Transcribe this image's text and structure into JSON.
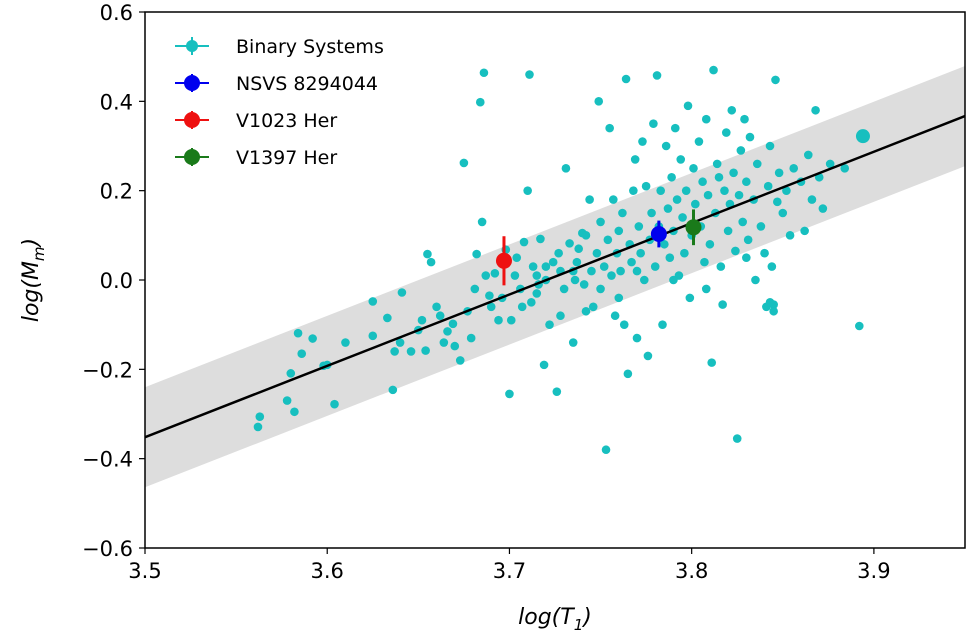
{
  "chart_data": {
    "type": "scatter",
    "xlabel": "log(T",
    "xlabel_sub": "1",
    "ylabel": "log(M",
    "ylabel_sub": "m",
    "xlim": [
      3.5,
      3.95
    ],
    "ylim": [
      -0.6,
      0.6
    ],
    "x_ticks": [
      "3.5",
      "3.6",
      "3.7",
      "3.8",
      "3.9"
    ],
    "x_tick_values": [
      3.5,
      3.6,
      3.7,
      3.8,
      3.9
    ],
    "y_ticks": [
      "0.6",
      "0.4",
      "0.2",
      "0.0",
      "−0.2",
      "−0.4",
      "−0.6"
    ],
    "y_tick_values": [
      0.6,
      0.4,
      0.2,
      0.0,
      -0.2,
      -0.4,
      -0.6
    ],
    "grid": false,
    "legend_position": "top-left",
    "fit_line": {
      "x": [
        3.5,
        3.95
      ],
      "y": [
        -0.352,
        0.367
      ],
      "color": "#000000"
    },
    "fit_band": {
      "half_width": 0.112,
      "color": "#dddddd"
    },
    "series": [
      {
        "name": "Binary Systems",
        "color": "#17bfbf",
        "points": [
          [
            3.562,
            -0.329
          ],
          [
            3.563,
            -0.306
          ],
          [
            3.578,
            -0.27
          ],
          [
            3.58,
            -0.209
          ],
          [
            3.582,
            -0.295
          ],
          [
            3.584,
            -0.119
          ],
          [
            3.586,
            -0.165
          ],
          [
            3.592,
            -0.131
          ],
          [
            3.598,
            -0.192
          ],
          [
            3.6,
            -0.19
          ],
          [
            3.604,
            -0.278
          ],
          [
            3.61,
            -0.14
          ],
          [
            3.625,
            -0.048
          ],
          [
            3.625,
            -0.125
          ],
          [
            3.633,
            -0.085
          ],
          [
            3.636,
            -0.246
          ],
          [
            3.637,
            -0.16
          ],
          [
            3.64,
            -0.14
          ],
          [
            3.641,
            -0.028
          ],
          [
            3.646,
            -0.16
          ],
          [
            3.65,
            -0.112
          ],
          [
            3.652,
            -0.09
          ],
          [
            3.654,
            -0.158
          ],
          [
            3.655,
            0.058
          ],
          [
            3.657,
            0.04
          ],
          [
            3.66,
            -0.06
          ],
          [
            3.662,
            -0.08
          ],
          [
            3.664,
            -0.14
          ],
          [
            3.666,
            -0.115
          ],
          [
            3.669,
            -0.098
          ],
          [
            3.67,
            -0.148
          ],
          [
            3.673,
            -0.18
          ],
          [
            3.675,
            0.262
          ],
          [
            3.677,
            -0.07
          ],
          [
            3.679,
            -0.13
          ],
          [
            3.681,
            -0.02
          ],
          [
            3.682,
            0.058
          ],
          [
            3.684,
            0.398
          ],
          [
            3.685,
            0.13
          ],
          [
            3.686,
            0.464
          ],
          [
            3.687,
            0.01
          ],
          [
            3.689,
            -0.035
          ],
          [
            3.69,
            -0.06
          ],
          [
            3.692,
            0.015
          ],
          [
            3.694,
            -0.09
          ],
          [
            3.696,
            -0.04
          ],
          [
            3.698,
            0.068
          ],
          [
            3.7,
            -0.255
          ],
          [
            3.701,
            -0.09
          ],
          [
            3.703,
            0.01
          ],
          [
            3.704,
            0.05
          ],
          [
            3.706,
            -0.02
          ],
          [
            3.708,
            0.085
          ],
          [
            3.71,
            0.2
          ],
          [
            3.711,
            0.46
          ],
          [
            3.712,
            -0.05
          ],
          [
            3.713,
            0.03
          ],
          [
            3.715,
            0.01
          ],
          [
            3.716,
            -0.01
          ],
          [
            3.717,
            0.092
          ],
          [
            3.719,
            -0.19
          ],
          [
            3.72,
            0.0
          ],
          [
            3.722,
            -0.1
          ],
          [
            3.724,
            0.04
          ],
          [
            3.726,
            -0.25
          ],
          [
            3.727,
            0.06
          ],
          [
            3.728,
            0.02
          ],
          [
            3.73,
            -0.02
          ],
          [
            3.731,
            0.25
          ],
          [
            3.733,
            0.082
          ],
          [
            3.735,
            -0.14
          ],
          [
            3.736,
            0.0
          ],
          [
            3.737,
            0.04
          ],
          [
            3.738,
            0.07
          ],
          [
            3.74,
            0.105
          ],
          [
            3.741,
            -0.01
          ],
          [
            3.742,
            0.1
          ],
          [
            3.744,
            0.18
          ],
          [
            3.745,
            0.02
          ],
          [
            3.746,
            -0.06
          ],
          [
            3.748,
            0.06
          ],
          [
            3.749,
            0.4
          ],
          [
            3.75,
            0.13
          ],
          [
            3.752,
            0.03
          ],
          [
            3.753,
            -0.38
          ],
          [
            3.754,
            0.09
          ],
          [
            3.755,
            0.34
          ],
          [
            3.756,
            0.01
          ],
          [
            3.757,
            0.18
          ],
          [
            3.758,
            -0.08
          ],
          [
            3.759,
            0.06
          ],
          [
            3.76,
            0.11
          ],
          [
            3.761,
            0.02
          ],
          [
            3.762,
            0.15
          ],
          [
            3.763,
            -0.1
          ],
          [
            3.764,
            0.45
          ],
          [
            3.765,
            -0.21
          ],
          [
            3.766,
            0.08
          ],
          [
            3.767,
            0.04
          ],
          [
            3.768,
            0.2
          ],
          [
            3.769,
            0.27
          ],
          [
            3.77,
            -0.13
          ],
          [
            3.771,
            0.12
          ],
          [
            3.772,
            0.06
          ],
          [
            3.773,
            0.31
          ],
          [
            3.774,
            0.0
          ],
          [
            3.775,
            0.21
          ],
          [
            3.776,
            -0.17
          ],
          [
            3.777,
            0.09
          ],
          [
            3.778,
            0.15
          ],
          [
            3.779,
            0.35
          ],
          [
            3.78,
            0.03
          ],
          [
            3.781,
            0.458
          ],
          [
            3.782,
            0.12
          ],
          [
            3.783,
            0.2
          ],
          [
            3.784,
            -0.1
          ],
          [
            3.785,
            0.08
          ],
          [
            3.786,
            0.3
          ],
          [
            3.787,
            0.16
          ],
          [
            3.788,
            0.05
          ],
          [
            3.789,
            0.23
          ],
          [
            3.79,
            0.11
          ],
          [
            3.791,
            0.34
          ],
          [
            3.792,
            0.18
          ],
          [
            3.793,
            0.01
          ],
          [
            3.794,
            0.27
          ],
          [
            3.795,
            0.14
          ],
          [
            3.796,
            0.06
          ],
          [
            3.797,
            0.2
          ],
          [
            3.798,
            0.39
          ],
          [
            3.799,
            -0.04
          ],
          [
            3.8,
            0.1
          ],
          [
            3.801,
            0.25
          ],
          [
            3.802,
            0.17
          ],
          [
            3.804,
            0.31
          ],
          [
            3.805,
            0.12
          ],
          [
            3.806,
            0.22
          ],
          [
            3.807,
            0.04
          ],
          [
            3.808,
            0.36
          ],
          [
            3.809,
            0.19
          ],
          [
            3.81,
            0.08
          ],
          [
            3.811,
            -0.185
          ],
          [
            3.812,
            0.47
          ],
          [
            3.813,
            0.15
          ],
          [
            3.814,
            0.26
          ],
          [
            3.815,
            0.23
          ],
          [
            3.816,
            0.03
          ],
          [
            3.817,
            -0.055
          ],
          [
            3.818,
            0.2
          ],
          [
            3.819,
            0.33
          ],
          [
            3.82,
            0.11
          ],
          [
            3.821,
            0.17
          ],
          [
            3.822,
            0.38
          ],
          [
            3.823,
            0.24
          ],
          [
            3.824,
            0.065
          ],
          [
            3.825,
            -0.355
          ],
          [
            3.826,
            0.19
          ],
          [
            3.827,
            0.29
          ],
          [
            3.828,
            0.13
          ],
          [
            3.829,
            0.36
          ],
          [
            3.83,
            0.22
          ],
          [
            3.831,
            0.09
          ],
          [
            3.832,
            0.32
          ],
          [
            3.834,
            0.18
          ],
          [
            3.836,
            0.26
          ],
          [
            3.838,
            0.12
          ],
          [
            3.84,
            0.06
          ],
          [
            3.841,
            -0.06
          ],
          [
            3.842,
            0.21
          ],
          [
            3.843,
            0.3
          ],
          [
            3.844,
            0.03
          ],
          [
            3.845,
            -0.055
          ],
          [
            3.846,
            0.448
          ],
          [
            3.847,
            0.175
          ],
          [
            3.848,
            0.24
          ],
          [
            3.85,
            0.15
          ],
          [
            3.852,
            0.2
          ],
          [
            3.854,
            0.1
          ],
          [
            3.856,
            0.25
          ],
          [
            3.86,
            0.22
          ],
          [
            3.862,
            0.11
          ],
          [
            3.864,
            0.28
          ],
          [
            3.866,
            0.18
          ],
          [
            3.868,
            0.38
          ],
          [
            3.87,
            0.23
          ],
          [
            3.872,
            0.16
          ],
          [
            3.876,
            0.26
          ],
          [
            3.884,
            0.25
          ],
          [
            3.892,
            -0.103
          ],
          [
            3.894,
            0.322
          ],
          [
            3.845,
            -0.07
          ],
          [
            3.843,
            -0.05
          ],
          [
            3.835,
            0.0
          ],
          [
            3.83,
            0.05
          ],
          [
            3.808,
            -0.02
          ],
          [
            3.79,
            0.0
          ],
          [
            3.77,
            0.02
          ],
          [
            3.76,
            -0.04
          ],
          [
            3.75,
            -0.02
          ],
          [
            3.742,
            -0.07
          ],
          [
            3.735,
            0.02
          ],
          [
            3.728,
            -0.08
          ],
          [
            3.72,
            0.03
          ],
          [
            3.715,
            -0.03
          ],
          [
            3.707,
            -0.06
          ]
        ]
      },
      {
        "name": "NSVS 8294044",
        "color": "#0000ee",
        "points": [
          [
            3.782,
            0.103
          ]
        ],
        "err": 0.03
      },
      {
        "name": "V1023 Her",
        "color": "#ee1111",
        "points": [
          [
            3.697,
            0.043
          ]
        ],
        "err": 0.055
      },
      {
        "name": "V1397 Her",
        "color": "#1a7a1a",
        "points": [
          [
            3.801,
            0.118
          ]
        ],
        "err": 0.04
      }
    ]
  }
}
